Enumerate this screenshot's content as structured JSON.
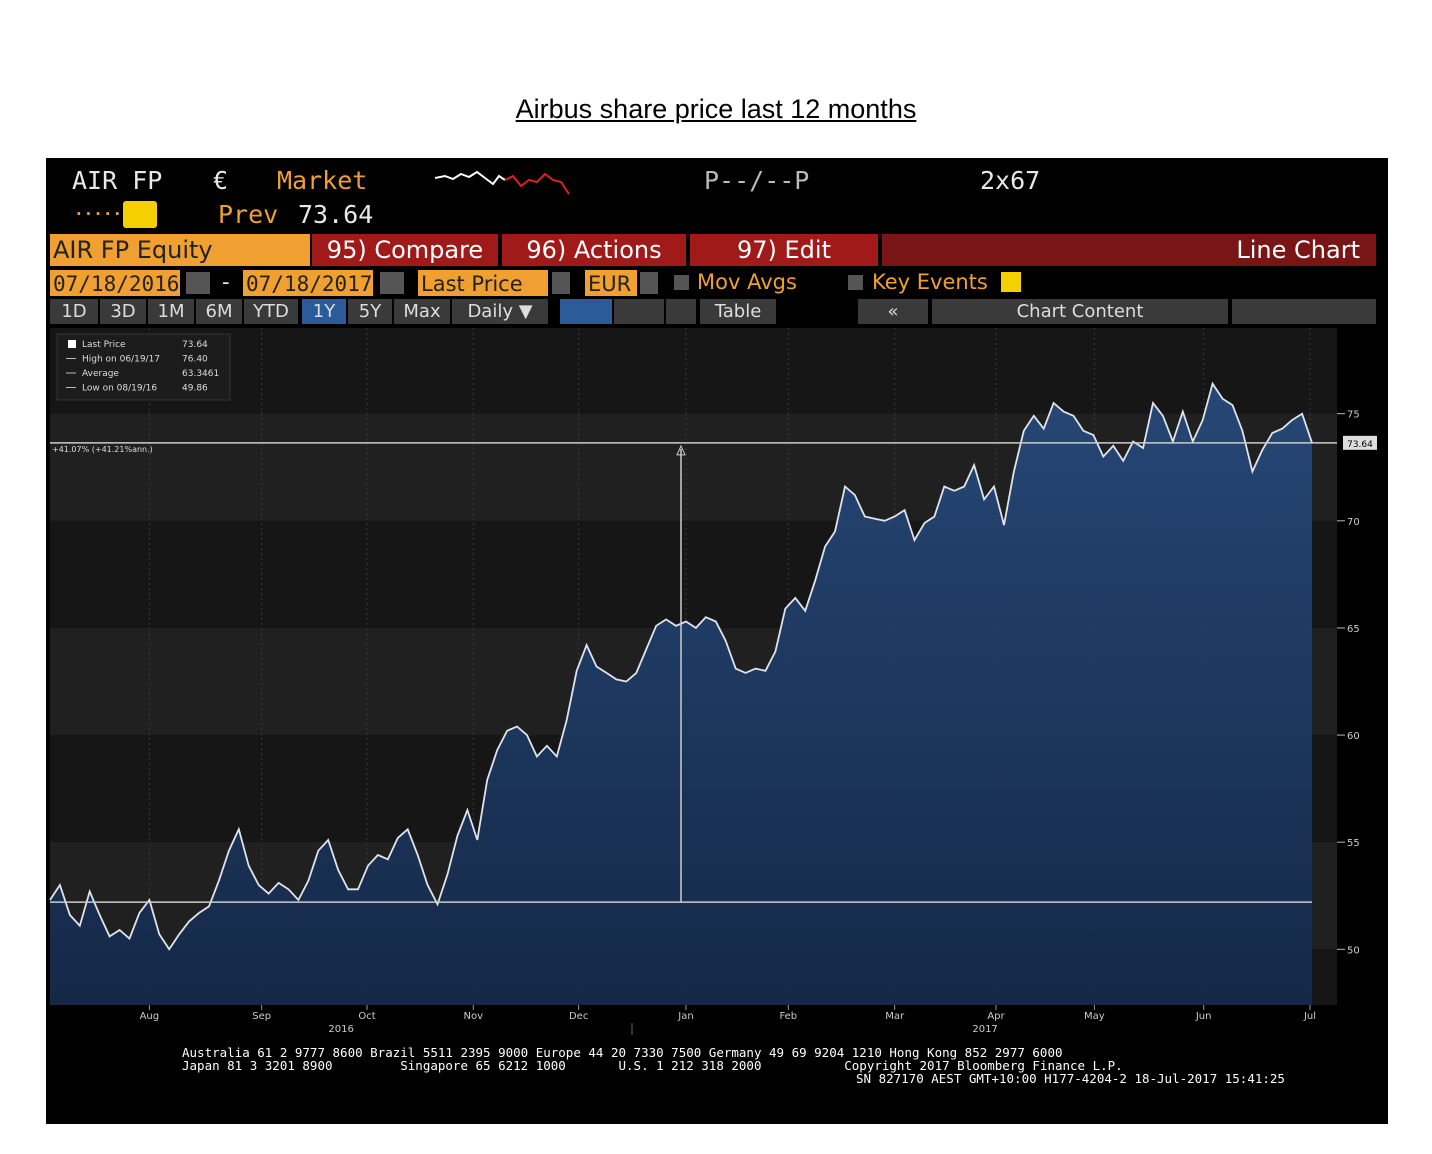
{
  "page_title": "Airbus share price last 12 months",
  "header": {
    "ticker": "AIR FP",
    "currency_symbol": "€",
    "market": "Market",
    "quote": "P--/--P",
    "size": "2x67",
    "dots": ".....",
    "prev_label": "Prev",
    "prev_value": "73.64"
  },
  "toolbar": {
    "security": "AIR FP Equity",
    "compare": "95) Compare",
    "actions": "96) Actions",
    "edit": "97) Edit",
    "chart_kind": "Line Chart",
    "start_date": "07/18/2016",
    "date_sep": "-",
    "end_date": "07/18/2017",
    "field": "Last Price",
    "currency": "EUR",
    "mov_avgs": "Mov Avgs",
    "key_events": "Key Events",
    "ranges": [
      "1D",
      "3D",
      "1M",
      "6M",
      "YTD",
      "1Y",
      "5Y",
      "Max"
    ],
    "period": "Daily ▼",
    "table": "Table",
    "collapse": "«",
    "chart_content": "Chart Content"
  },
  "chart_data": {
    "type": "area",
    "legend": [
      {
        "name": "Last Price",
        "label": "73.64"
      },
      {
        "name": "High on 06/19/17",
        "label": "76.40"
      },
      {
        "name": "Average",
        "label": "63.3461"
      },
      {
        "name": "Low on 08/19/16",
        "label": "49.86"
      }
    ],
    "annotation": "+41.07% (+41.21%ann.)",
    "start_price": 52.2,
    "last_price": {
      "value": 73.64,
      "label": "73.64"
    },
    "measure_x": 63.5,
    "values": [
      52.3,
      53.0,
      51.6,
      51.1,
      52.7,
      51.6,
      50.6,
      50.9,
      50.5,
      51.7,
      52.3,
      50.7,
      50.0,
      50.7,
      51.3,
      51.7,
      52.0,
      53.2,
      54.6,
      55.6,
      53.9,
      53.0,
      52.6,
      53.1,
      52.8,
      52.3,
      53.2,
      54.6,
      55.1,
      53.7,
      52.8,
      52.8,
      53.9,
      54.4,
      54.2,
      55.2,
      55.6,
      54.4,
      53.0,
      52.1,
      53.5,
      55.3,
      56.5,
      55.1,
      57.9,
      59.3,
      60.2,
      60.4,
      60.0,
      59.0,
      59.5,
      59.0,
      60.7,
      63.0,
      64.2,
      63.2,
      62.9,
      62.6,
      62.5,
      62.9,
      64.0,
      65.1,
      65.4,
      65.1,
      65.3,
      65.0,
      65.5,
      65.3,
      64.4,
      63.1,
      62.9,
      63.1,
      63.0,
      63.9,
      65.9,
      66.4,
      65.8,
      67.2,
      68.8,
      69.5,
      71.6,
      71.2,
      70.2,
      70.1,
      70.0,
      70.2,
      70.5,
      69.1,
      69.9,
      70.2,
      71.6,
      71.4,
      71.6,
      72.6,
      71.0,
      71.6,
      69.8,
      72.3,
      74.2,
      74.9,
      74.3,
      75.5,
      75.1,
      74.9,
      74.2,
      74.0,
      73.0,
      73.5,
      72.8,
      73.7,
      73.4,
      75.5,
      74.9,
      73.7,
      75.1,
      73.7,
      74.7,
      76.4,
      75.7,
      75.4,
      74.2,
      72.3,
      73.3,
      74.1,
      74.3,
      74.7,
      75.0,
      73.64
    ],
    "color": "#dfe3ea",
    "fill": "#1d3963",
    "ylim": [
      47.4,
      79
    ],
    "yticks": [
      50,
      55,
      60,
      65,
      70,
      75
    ],
    "xticks": [
      {
        "value": 10,
        "label": "Aug"
      },
      {
        "value": 21.3,
        "label": "Sep"
      },
      {
        "value": 31.9,
        "label": "Oct"
      },
      {
        "value": 42.6,
        "label": "Nov"
      },
      {
        "value": 53.2,
        "label": "Dec"
      },
      {
        "value": 64,
        "label": "Jan"
      },
      {
        "value": 74.3,
        "label": "Feb"
      },
      {
        "value": 85,
        "label": "Mar"
      },
      {
        "value": 95.2,
        "label": "Apr"
      },
      {
        "value": 105.1,
        "label": "May"
      },
      {
        "value": 116.1,
        "label": "Jun"
      },
      {
        "value": 126.8,
        "label": "Jul"
      }
    ],
    "year_labels": [
      {
        "value": 29.3,
        "label": "2016"
      },
      {
        "value": 94.1,
        "label": "2017"
      }
    ],
    "grid": true
  },
  "footer": [
    "Australia 61 2 9777 8600 Brazil 5511 2395 9000 Europe 44 20 7330 7500 Germany 49 69 9204 1210 Hong Kong 852 2977 6000",
    "Japan 81 3 3201 8900         Singapore 65 6212 1000       U.S. 1 212 318 2000           Copyright 2017 Bloomberg Finance L.P.",
    "SN 827170 AEST GMT+10:00 H177-4204-2 18-Jul-2017 15:41:25"
  ]
}
